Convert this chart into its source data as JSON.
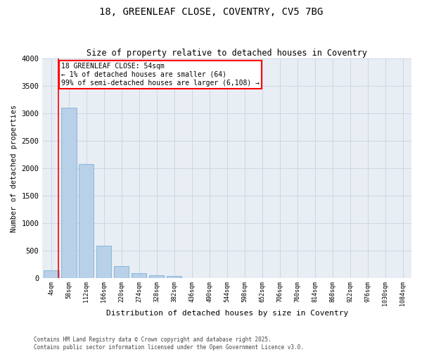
{
  "title1": "18, GREENLEAF CLOSE, COVENTRY, CV5 7BG",
  "title2": "Size of property relative to detached houses in Coventry",
  "xlabel": "Distribution of detached houses by size in Coventry",
  "ylabel": "Number of detached properties",
  "footer1": "Contains HM Land Registry data © Crown copyright and database right 2025.",
  "footer2": "Contains public sector information licensed under the Open Government Licence v3.0.",
  "categories": [
    "4sqm",
    "58sqm",
    "112sqm",
    "166sqm",
    "220sqm",
    "274sqm",
    "328sqm",
    "382sqm",
    "436sqm",
    "490sqm",
    "544sqm",
    "598sqm",
    "652sqm",
    "706sqm",
    "760sqm",
    "814sqm",
    "868sqm",
    "922sqm",
    "976sqm",
    "1030sqm",
    "1084sqm"
  ],
  "values": [
    140,
    3100,
    2080,
    585,
    210,
    80,
    50,
    35,
    0,
    0,
    0,
    0,
    0,
    0,
    0,
    0,
    0,
    0,
    0,
    0,
    0
  ],
  "bar_color": "#b8d0e8",
  "bar_edgecolor": "#6fa8d0",
  "ylim": [
    0,
    4000
  ],
  "yticks": [
    0,
    500,
    1000,
    1500,
    2000,
    2500,
    3000,
    3500,
    4000
  ],
  "annotation_text": "18 GREENLEAF CLOSE: 54sqm\n← 1% of detached houses are smaller (64)\n99% of semi-detached houses are larger (6,108) →",
  "background_color": "#e8eef4",
  "grid_color": "#c8d4de"
}
